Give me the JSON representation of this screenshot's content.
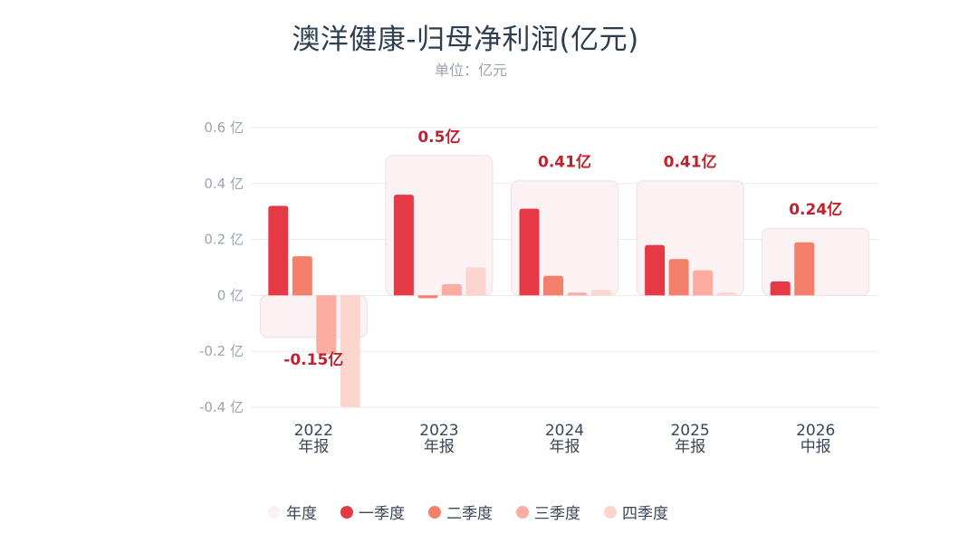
{
  "title": "澳洋健康-归母净利润(亿元)",
  "subtitle": "单位：亿元",
  "chart_data": {
    "type": "bar",
    "title": "澳洋健康-归母净利润(亿元)",
    "subtitle": "单位：亿元",
    "unit": "亿",
    "ylim": [
      -0.4,
      0.6
    ],
    "yticks": [
      0.6,
      0.4,
      0.2,
      0,
      -0.2,
      -0.4
    ],
    "ytick_labels": [
      "0.6 亿",
      "0.4 亿",
      "0.2 亿",
      "0 亿",
      "-0.2 亿",
      "-0.4 亿"
    ],
    "categories": [
      {
        "year": "2022",
        "period": "年报"
      },
      {
        "year": "2023",
        "period": "年报"
      },
      {
        "year": "2024",
        "period": "年报"
      },
      {
        "year": "2025",
        "period": "年报"
      },
      {
        "year": "2026",
        "period": "中报"
      }
    ],
    "annual": {
      "name": "年度",
      "values": [
        -0.15,
        0.5,
        0.41,
        0.41,
        0.24
      ],
      "labels": [
        "-0.15亿",
        "0.5亿",
        "0.41亿",
        "0.41亿",
        "0.24亿"
      ],
      "color": "#fbf2f3"
    },
    "series": [
      {
        "name": "一季度",
        "color": "#e63946",
        "values": [
          0.32,
          0.36,
          0.31,
          0.18,
          0.05
        ]
      },
      {
        "name": "二季度",
        "color": "#f4806b",
        "values": [
          0.14,
          -0.01,
          0.07,
          0.13,
          0.19
        ]
      },
      {
        "name": "三季度",
        "color": "#fbada2",
        "values": [
          -0.21,
          0.04,
          0.01,
          0.09,
          null
        ]
      },
      {
        "name": "四季度",
        "color": "#fdd5cf",
        "values": [
          -0.4,
          0.1,
          0.02,
          0.01,
          null
        ]
      }
    ],
    "grid": true,
    "legend_position": "bottom"
  },
  "legend": [
    {
      "label": "年度",
      "color": "#fbf2f3"
    },
    {
      "label": "一季度",
      "color": "#e63946"
    },
    {
      "label": "二季度",
      "color": "#f4806b"
    },
    {
      "label": "三季度",
      "color": "#fbada2"
    },
    {
      "label": "四季度",
      "color": "#fdd5cf"
    }
  ]
}
